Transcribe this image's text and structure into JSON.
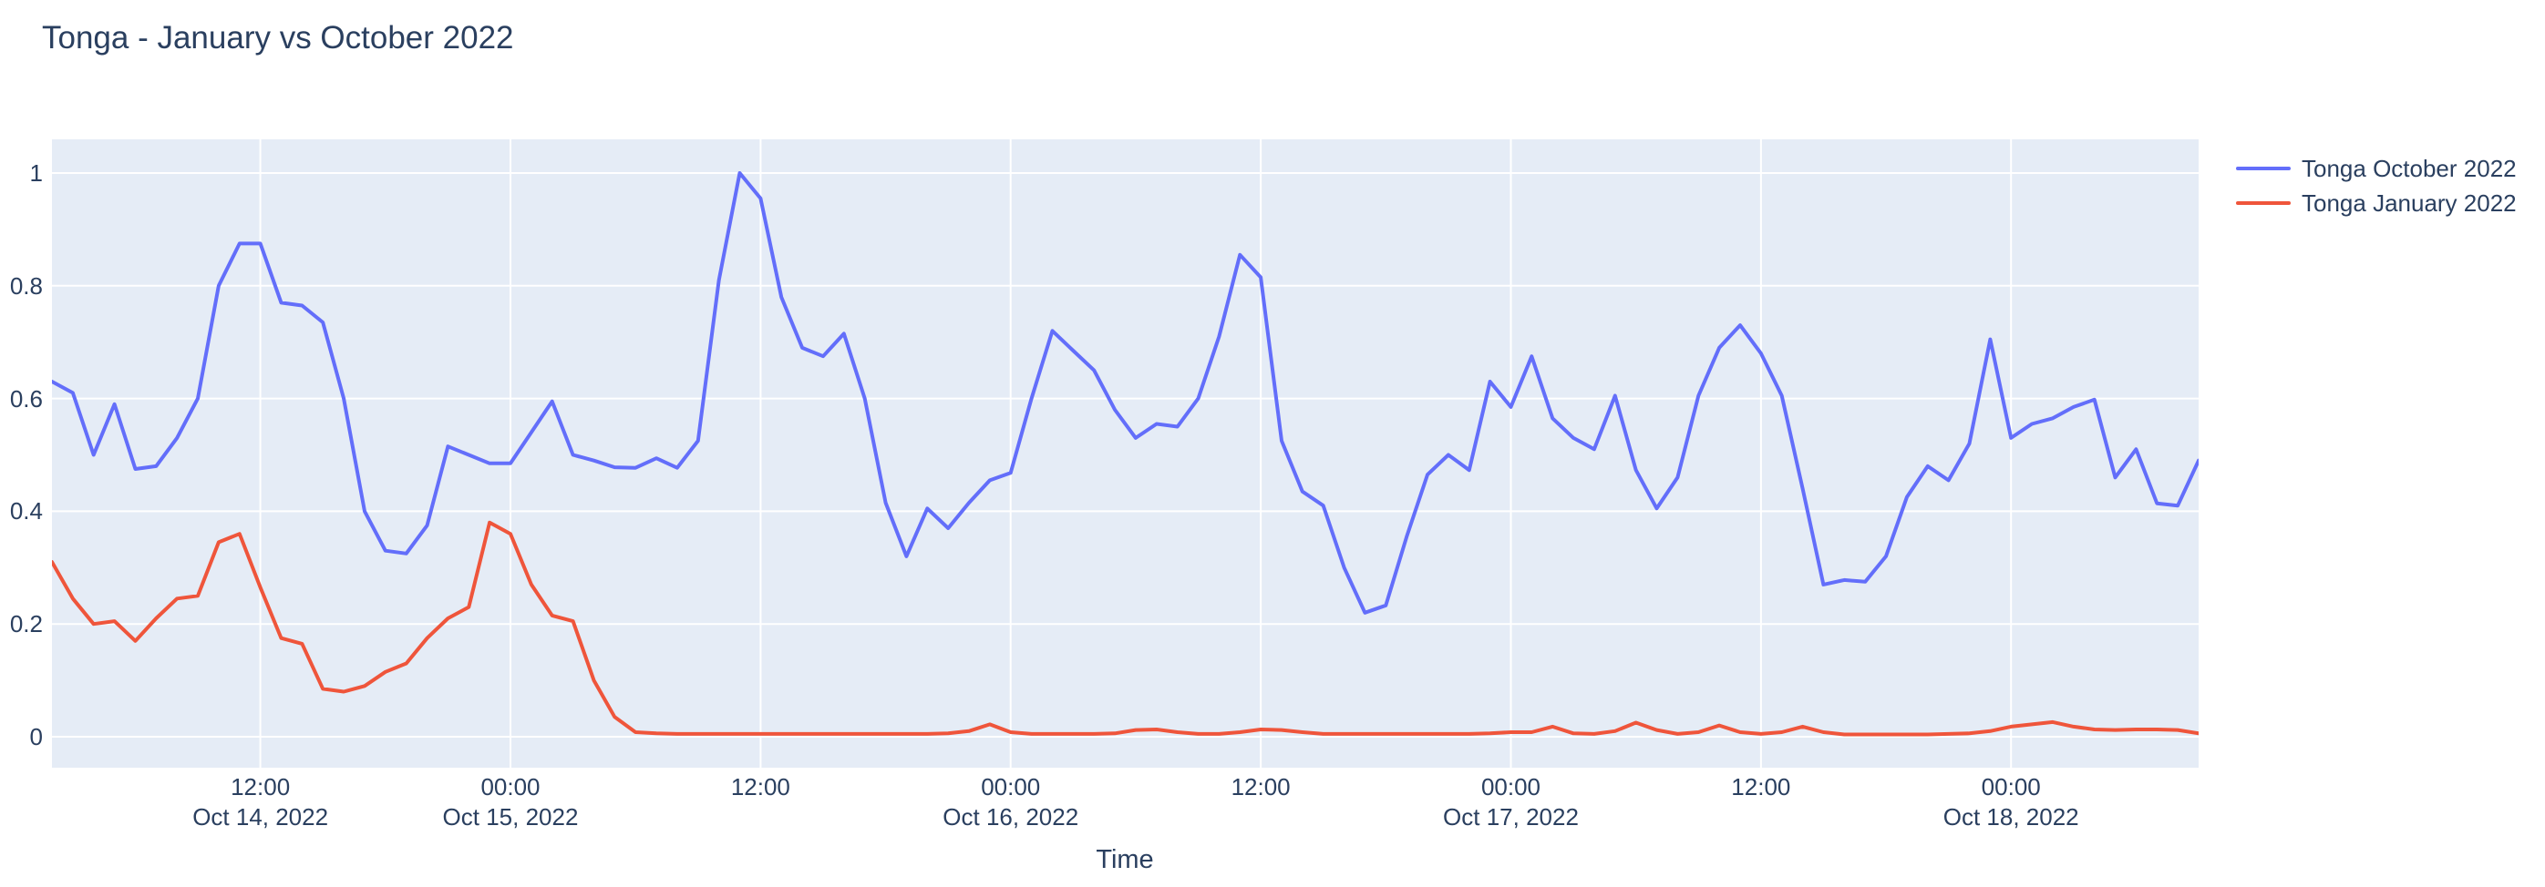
{
  "title": "Tonga - January vs October 2022",
  "colors": {
    "paper_background": "#ffffff",
    "plot_background": "#e5ecf6",
    "grid": "#ffffff",
    "text": "#2a3f5f",
    "october_line": "#636efa",
    "january_line": "#ef553b"
  },
  "legend": [
    {
      "label": "Tonga October 2022",
      "color": "#636efa"
    },
    {
      "label": "Tonga January 2022",
      "color": "#ef553b"
    }
  ],
  "xaxis": {
    "title": "Time",
    "ticks": [
      {
        "h": 10,
        "time": "12:00",
        "date": "Oct 14, 2022"
      },
      {
        "h": 22,
        "time": "00:00",
        "date": "Oct 15, 2022"
      },
      {
        "h": 34,
        "time": "12:00",
        "date": ""
      },
      {
        "h": 46,
        "time": "00:00",
        "date": "Oct 16, 2022"
      },
      {
        "h": 58,
        "time": "12:00",
        "date": ""
      },
      {
        "h": 70,
        "time": "00:00",
        "date": "Oct 17, 2022"
      },
      {
        "h": 82,
        "time": "12:00",
        "date": ""
      },
      {
        "h": 94,
        "time": "00:00",
        "date": "Oct 18, 2022"
      }
    ]
  },
  "yaxis": {
    "ticks": [
      {
        "v": 0.0,
        "label": "0"
      },
      {
        "v": 0.2,
        "label": "0.2"
      },
      {
        "v": 0.4,
        "label": "0.4"
      },
      {
        "v": 0.6,
        "label": "0.6"
      },
      {
        "v": 0.8,
        "label": "0.8"
      },
      {
        "v": 1.0,
        "label": "1"
      }
    ]
  },
  "chart_data": {
    "type": "line",
    "title": "Tonga - January vs October 2022",
    "xlabel": "Time",
    "ylabel": "",
    "x_start": "2022-10-14 02:00",
    "x_end": "2022-10-18 09:00",
    "x_step": "1 hour",
    "xtick_labels": [
      "12:00 Oct 14, 2022",
      "00:00 Oct 15, 2022",
      "12:00",
      "00:00 Oct 16, 2022",
      "12:00",
      "00:00 Oct 17, 2022",
      "12:00",
      "00:00 Oct 18, 2022"
    ],
    "ytick_values": [
      0,
      0.2,
      0.4,
      0.6,
      0.8,
      1
    ],
    "ylim": [
      -0.056,
      1.057
    ],
    "grid": true,
    "legend_position": "top-right-outside",
    "series": [
      {
        "name": "Tonga October 2022",
        "color": "#636efa",
        "values": [
          0.63,
          0.61,
          0.5,
          0.59,
          0.475,
          0.48,
          0.53,
          0.6,
          0.8,
          0.875,
          0.875,
          0.77,
          0.765,
          0.735,
          0.6,
          0.4,
          0.33,
          0.325,
          0.375,
          0.515,
          0.5,
          0.485,
          0.485,
          0.54,
          0.595,
          0.5,
          0.49,
          0.478,
          0.477,
          0.494,
          0.477,
          0.525,
          0.81,
          1.0,
          0.955,
          0.78,
          0.69,
          0.675,
          0.715,
          0.6,
          0.415,
          0.32,
          0.405,
          0.37,
          0.415,
          0.455,
          0.468,
          0.6,
          0.72,
          0.685,
          0.65,
          0.58,
          0.53,
          0.555,
          0.55,
          0.6,
          0.71,
          0.855,
          0.815,
          0.525,
          0.435,
          0.41,
          0.3,
          0.22,
          0.233,
          0.355,
          0.465,
          0.5,
          0.473,
          0.63,
          0.585,
          0.675,
          0.565,
          0.53,
          0.51,
          0.605,
          0.473,
          0.405,
          0.46,
          0.605,
          0.69,
          0.73,
          0.68,
          0.605,
          0.44,
          0.27,
          0.278,
          0.275,
          0.32,
          0.425,
          0.48,
          0.455,
          0.52,
          0.705,
          0.53,
          0.555,
          0.565,
          0.585,
          0.598,
          0.46,
          0.51,
          0.414,
          0.41,
          0.49
        ]
      },
      {
        "name": "Tonga January 2022",
        "color": "#ef553b",
        "values": [
          0.31,
          0.245,
          0.2,
          0.205,
          0.17,
          0.21,
          0.245,
          0.25,
          0.345,
          0.36,
          0.265,
          0.175,
          0.165,
          0.085,
          0.08,
          0.09,
          0.115,
          0.13,
          0.175,
          0.21,
          0.23,
          0.38,
          0.36,
          0.27,
          0.215,
          0.205,
          0.1,
          0.035,
          0.008,
          0.006,
          0.005,
          0.005,
          0.005,
          0.005,
          0.005,
          0.005,
          0.005,
          0.005,
          0.005,
          0.005,
          0.005,
          0.005,
          0.005,
          0.006,
          0.01,
          0.022,
          0.008,
          0.005,
          0.005,
          0.005,
          0.005,
          0.006,
          0.012,
          0.013,
          0.008,
          0.005,
          0.005,
          0.008,
          0.013,
          0.012,
          0.008,
          0.005,
          0.005,
          0.005,
          0.005,
          0.005,
          0.005,
          0.005,
          0.005,
          0.006,
          0.008,
          0.008,
          0.018,
          0.006,
          0.005,
          0.01,
          0.025,
          0.012,
          0.005,
          0.008,
          0.02,
          0.008,
          0.005,
          0.008,
          0.018,
          0.008,
          0.004,
          0.004,
          0.004,
          0.004,
          0.004,
          0.005,
          0.006,
          0.01,
          0.018,
          0.022,
          0.026,
          0.018,
          0.013,
          0.012,
          0.013,
          0.013,
          0.012,
          0.006
        ]
      }
    ]
  }
}
